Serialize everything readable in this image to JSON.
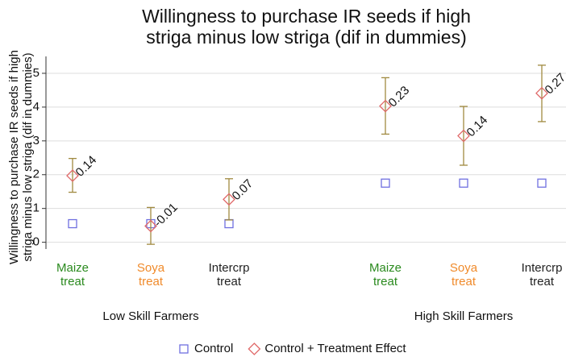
{
  "chart_data": {
    "type": "dot-ci",
    "title": [
      "Willingness to purchase IR seeds if high",
      "striga minus low striga (dif in dummies)"
    ],
    "y_label": [
      "Willingness to purchase IR seeds if high",
      "striga minus low striga (dif in dummies)"
    ],
    "categories": [
      [
        "Maize",
        "treat"
      ],
      [
        "Soya",
        "treat"
      ],
      [
        "Intercrp",
        "treat"
      ],
      [
        "Maize",
        "treat"
      ],
      [
        "Soya",
        "treat"
      ],
      [
        "Intercrp",
        "treat"
      ]
    ],
    "category_colors": [
      "#2a8a1e",
      "#f08a2a",
      "#222222",
      "#2a8a1e",
      "#f08a2a",
      "#222222"
    ],
    "groups": [
      "Low Skill Farmers",
      "High Skill Farmers"
    ],
    "series": [
      {
        "name": "Control",
        "color": "#7070e0",
        "marker": "square",
        "values": [
          0.055,
          0.055,
          0.055,
          0.175,
          0.175,
          0.175
        ]
      },
      {
        "name": "Control + Treatment Effect",
        "color": "#e06a6a",
        "marker": "diamond",
        "values": [
          0.197,
          0.048,
          0.127,
          0.403,
          0.315,
          0.441
        ],
        "ci_low": [
          0.148,
          -0.006,
          0.066,
          0.32,
          0.228,
          0.357
        ],
        "ci_high": [
          0.248,
          0.103,
          0.188,
          0.487,
          0.402,
          0.524
        ],
        "ci_color": "#a08a40",
        "effects": [
          0.14,
          -0.01,
          0.07,
          0.23,
          0.14,
          0.27
        ]
      }
    ],
    "ylim": [
      -0.02,
      0.55
    ],
    "yticks": [
      0,
      {
        "value": 0.1,
        "label": ".1"
      },
      {
        "value": 0.2,
        "label": ".2"
      },
      {
        "value": 0.3,
        "label": ".3"
      },
      {
        "value": 0.4,
        "label": ".4"
      },
      {
        "value": 0.5,
        "label": ".5"
      }
    ],
    "grid": true
  }
}
